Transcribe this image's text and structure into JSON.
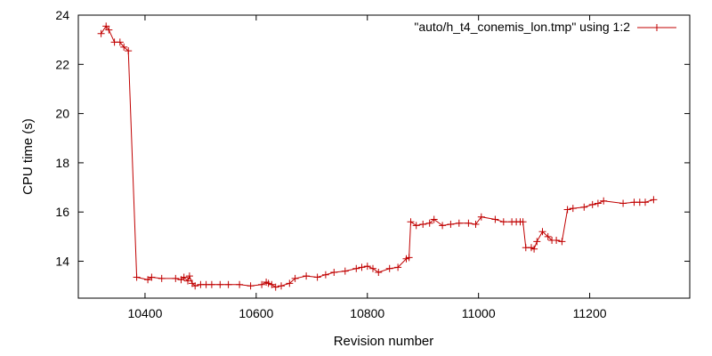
{
  "chart_data": {
    "type": "line",
    "title": "",
    "xlabel": "Revision number",
    "ylabel": "CPU time (s)",
    "xlim": [
      10280,
      11380
    ],
    "ylim": [
      12.5,
      24
    ],
    "xticks": [
      10400,
      10600,
      10800,
      11000,
      11200
    ],
    "yticks": [
      14,
      16,
      18,
      20,
      22,
      24
    ],
    "grid": false,
    "legend_position": "top-right",
    "series": [
      {
        "name": "\"auto/h_t4_conemis_lon.tmp\" using 1:2",
        "color": "#c00000",
        "marker": "plus",
        "points": [
          [
            10321,
            23.25
          ],
          [
            10330,
            23.55
          ],
          [
            10335,
            23.4
          ],
          [
            10345,
            22.9
          ],
          [
            10355,
            22.9
          ],
          [
            10362,
            22.7
          ],
          [
            10370,
            22.55
          ],
          [
            10385,
            13.35
          ],
          [
            10405,
            13.25
          ],
          [
            10412,
            13.35
          ],
          [
            10430,
            13.3
          ],
          [
            10455,
            13.3
          ],
          [
            10465,
            13.25
          ],
          [
            10470,
            13.35
          ],
          [
            10477,
            13.2
          ],
          [
            10480,
            13.4
          ],
          [
            10485,
            13.1
          ],
          [
            10490,
            13.0
          ],
          [
            10500,
            13.05
          ],
          [
            10510,
            13.05
          ],
          [
            10520,
            13.05
          ],
          [
            10535,
            13.05
          ],
          [
            10550,
            13.05
          ],
          [
            10570,
            13.05
          ],
          [
            10590,
            13.0
          ],
          [
            10610,
            13.05
          ],
          [
            10618,
            13.15
          ],
          [
            10622,
            13.1
          ],
          [
            10628,
            13.05
          ],
          [
            10635,
            12.95
          ],
          [
            10645,
            13.0
          ],
          [
            10660,
            13.1
          ],
          [
            10670,
            13.3
          ],
          [
            10690,
            13.4
          ],
          [
            10710,
            13.35
          ],
          [
            10725,
            13.45
          ],
          [
            10740,
            13.55
          ],
          [
            10760,
            13.6
          ],
          [
            10780,
            13.7
          ],
          [
            10790,
            13.75
          ],
          [
            10800,
            13.8
          ],
          [
            10810,
            13.7
          ],
          [
            10820,
            13.55
          ],
          [
            10840,
            13.7
          ],
          [
            10855,
            13.75
          ],
          [
            10870,
            14.1
          ],
          [
            10875,
            14.15
          ],
          [
            10878,
            15.6
          ],
          [
            10888,
            15.45
          ],
          [
            10900,
            15.5
          ],
          [
            10912,
            15.55
          ],
          [
            10920,
            15.7
          ],
          [
            10935,
            15.45
          ],
          [
            10950,
            15.5
          ],
          [
            10965,
            15.55
          ],
          [
            10982,
            15.55
          ],
          [
            10995,
            15.5
          ],
          [
            11005,
            15.8
          ],
          [
            11030,
            15.7
          ],
          [
            11045,
            15.6
          ],
          [
            11060,
            15.6
          ],
          [
            11068,
            15.6
          ],
          [
            11075,
            15.6
          ],
          [
            11080,
            15.6
          ],
          [
            11085,
            14.55
          ],
          [
            11095,
            14.55
          ],
          [
            11100,
            14.5
          ],
          [
            11105,
            14.8
          ],
          [
            11115,
            15.2
          ],
          [
            11125,
            15.0
          ],
          [
            11132,
            14.85
          ],
          [
            11140,
            14.85
          ],
          [
            11150,
            14.8
          ],
          [
            11160,
            16.1
          ],
          [
            11170,
            16.15
          ],
          [
            11190,
            16.2
          ],
          [
            11205,
            16.3
          ],
          [
            11215,
            16.35
          ],
          [
            11225,
            16.45
          ],
          [
            11260,
            16.35
          ],
          [
            11280,
            16.4
          ],
          [
            11290,
            16.4
          ],
          [
            11300,
            16.4
          ],
          [
            11315,
            16.5
          ]
        ]
      }
    ]
  }
}
